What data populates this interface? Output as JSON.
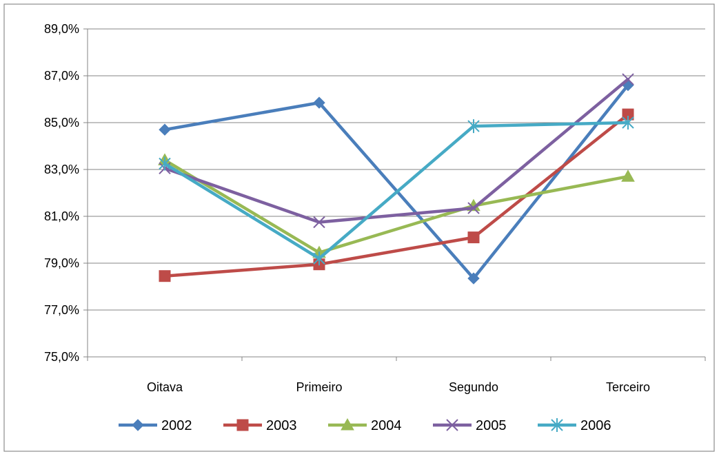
{
  "chart_data": {
    "type": "line",
    "categories": [
      "Oitava",
      "Primeiro",
      "Segundo",
      "Terceiro"
    ],
    "ylim": [
      75.0,
      89.0
    ],
    "y_ticks": [
      "75,0%",
      "77,0%",
      "79,0%",
      "81,0%",
      "83,0%",
      "85,0%",
      "87,0%",
      "89,0%"
    ],
    "y_tick_values": [
      75,
      77,
      79,
      81,
      83,
      85,
      87,
      89
    ],
    "grid": "horizontal",
    "legend_position": "bottom",
    "series": [
      {
        "name": "2002",
        "values": [
          84.7,
          85.85,
          78.35,
          86.6
        ],
        "color": "#4a7ebb",
        "marker": "diamond"
      },
      {
        "name": "2003",
        "values": [
          78.45,
          78.95,
          80.1,
          85.35
        ],
        "color": "#be4b48",
        "marker": "square"
      },
      {
        "name": "2004",
        "values": [
          83.4,
          79.45,
          81.45,
          82.7
        ],
        "color": "#98b954",
        "marker": "triangle"
      },
      {
        "name": "2005",
        "values": [
          83.05,
          80.75,
          81.35,
          86.85
        ],
        "color": "#7d60a0",
        "marker": "x"
      },
      {
        "name": "2006",
        "values": [
          83.25,
          79.2,
          84.85,
          85.0
        ],
        "color": "#46aac5",
        "marker": "star"
      }
    ]
  }
}
